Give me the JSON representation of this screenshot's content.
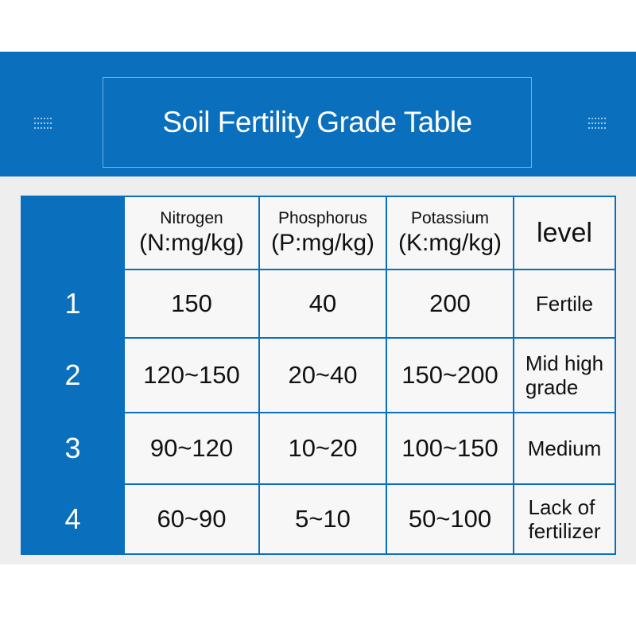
{
  "title": "Soil Fertility Grade Table",
  "colors": {
    "banner": "#0a6fbd",
    "cell_bg": "#f7f7f7",
    "area_bg": "#eeeeee"
  },
  "header": {
    "nitrogen": {
      "name": "Nitrogen",
      "unit": "(N:mg/kg)"
    },
    "phosphorus": {
      "name": "Phosphorus",
      "unit": "(P:mg/kg)"
    },
    "potassium": {
      "name": "Potassium",
      "unit": "(K:mg/kg)"
    },
    "level": "level"
  },
  "rows": [
    {
      "grade": "1",
      "nitrogen": "150",
      "phosphorus": "40",
      "potassium": "200",
      "level_lines": [
        "Fertile"
      ]
    },
    {
      "grade": "2",
      "nitrogen": "120~150",
      "phosphorus": "20~40",
      "potassium": "150~200",
      "level_lines": [
        "Mid high",
        "grade"
      ]
    },
    {
      "grade": "3",
      "nitrogen": "90~120",
      "phosphorus": "10~20",
      "potassium": "100~150",
      "level_lines": [
        "Medium"
      ]
    },
    {
      "grade": "4",
      "nitrogen": "60~90",
      "phosphorus": "5~10",
      "potassium": "50~100",
      "level_lines": [
        "Lack of",
        "fertilizer"
      ]
    }
  ]
}
